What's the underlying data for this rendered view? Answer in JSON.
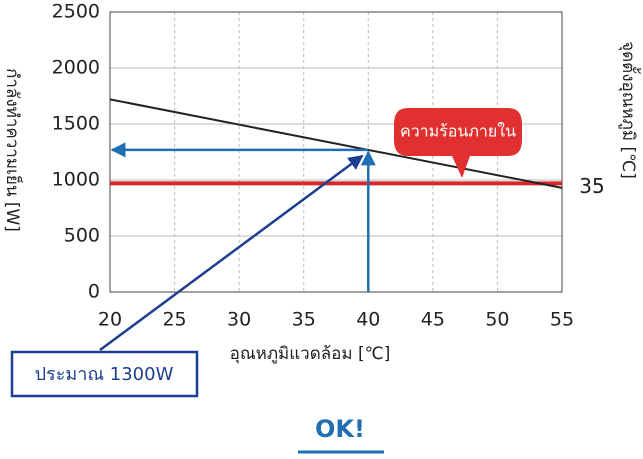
{
  "chart_data": {
    "type": "line",
    "y_label": "กำลังทำความเย็น [W]",
    "x_label": "อุณหภูมิแวดล้อม [℃]",
    "y2_label": "จุดตั้งอุณหภูมิ [℃]",
    "x": [
      20,
      55
    ],
    "series": [
      {
        "color": "#222222",
        "values": [
          1720,
          930
        ]
      }
    ],
    "reference": {
      "value": 970,
      "label": "35",
      "color": "#d9262b"
    },
    "marker": {
      "x": 40,
      "y": 1269,
      "color": "#1f6fb2"
    },
    "callout": "ความร้อนภายใน",
    "note": "ประมาณ 1300W",
    "result": "OK!",
    "xlim": [
      20,
      55
    ],
    "xticks": [
      20,
      25,
      30,
      35,
      40,
      45,
      50,
      55
    ],
    "ylim": [
      0,
      2500
    ],
    "yticks": [
      0,
      500,
      1000,
      1500,
      2000,
      2500
    ],
    "grid": true
  }
}
